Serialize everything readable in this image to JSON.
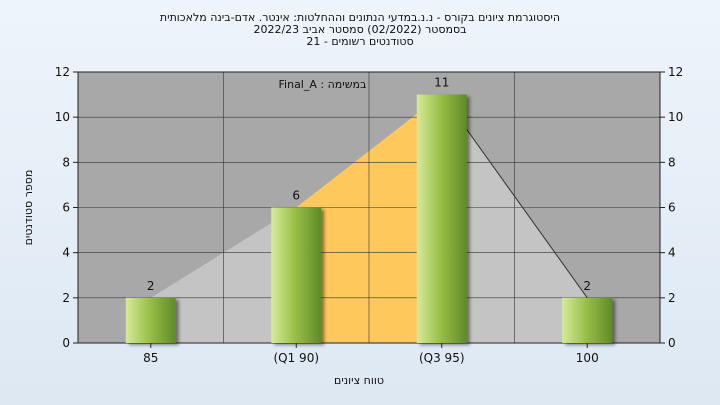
{
  "header": {
    "line1": "היסטוגרמת ציונים בקורס - נ.נ.במדעי הנתונים וההחלטות: אינטר. אדם-בינה מלאכותית",
    "line2": "בסמסטר  (02/2022)  סמסטר אביב 2022/23",
    "line3": "סטודנטים רשומים - 21"
  },
  "chart_data": {
    "type": "bar",
    "title": "היסטוגרמת ציונים בקורס - נ.נ.במדעי הנתונים וההחלטות: אינטר. אדם-בינה מלאכותית",
    "subtitle": "בסמסטר  (02/2022)  סמסטר אביב 2022/23 | סטודנטים רשומים - 21",
    "categories": [
      "85",
      "(Q1 90)",
      "(Q3 95)",
      "100"
    ],
    "values": [
      2,
      6,
      11,
      2
    ],
    "data_labels": [
      "2",
      "6",
      "11",
      "2"
    ],
    "xlabel": "טווח ציונים",
    "ylabel": "מספר סטודנטים",
    "ylim": [
      0,
      12
    ],
    "yticks": [
      "0",
      "2",
      "4",
      "6",
      "8",
      "10",
      "12"
    ],
    "annotation": "במשימה : Final_A",
    "grid": true,
    "secondary_y_axis": true,
    "colors": {
      "bar_light": "#d7ea9a",
      "bar_dark": "#5f8a26",
      "plot_bg": "#a8a8a8",
      "area_gray": "#c4c4c4",
      "area_highlight": "#ffc85c",
      "line": "#333333"
    }
  }
}
